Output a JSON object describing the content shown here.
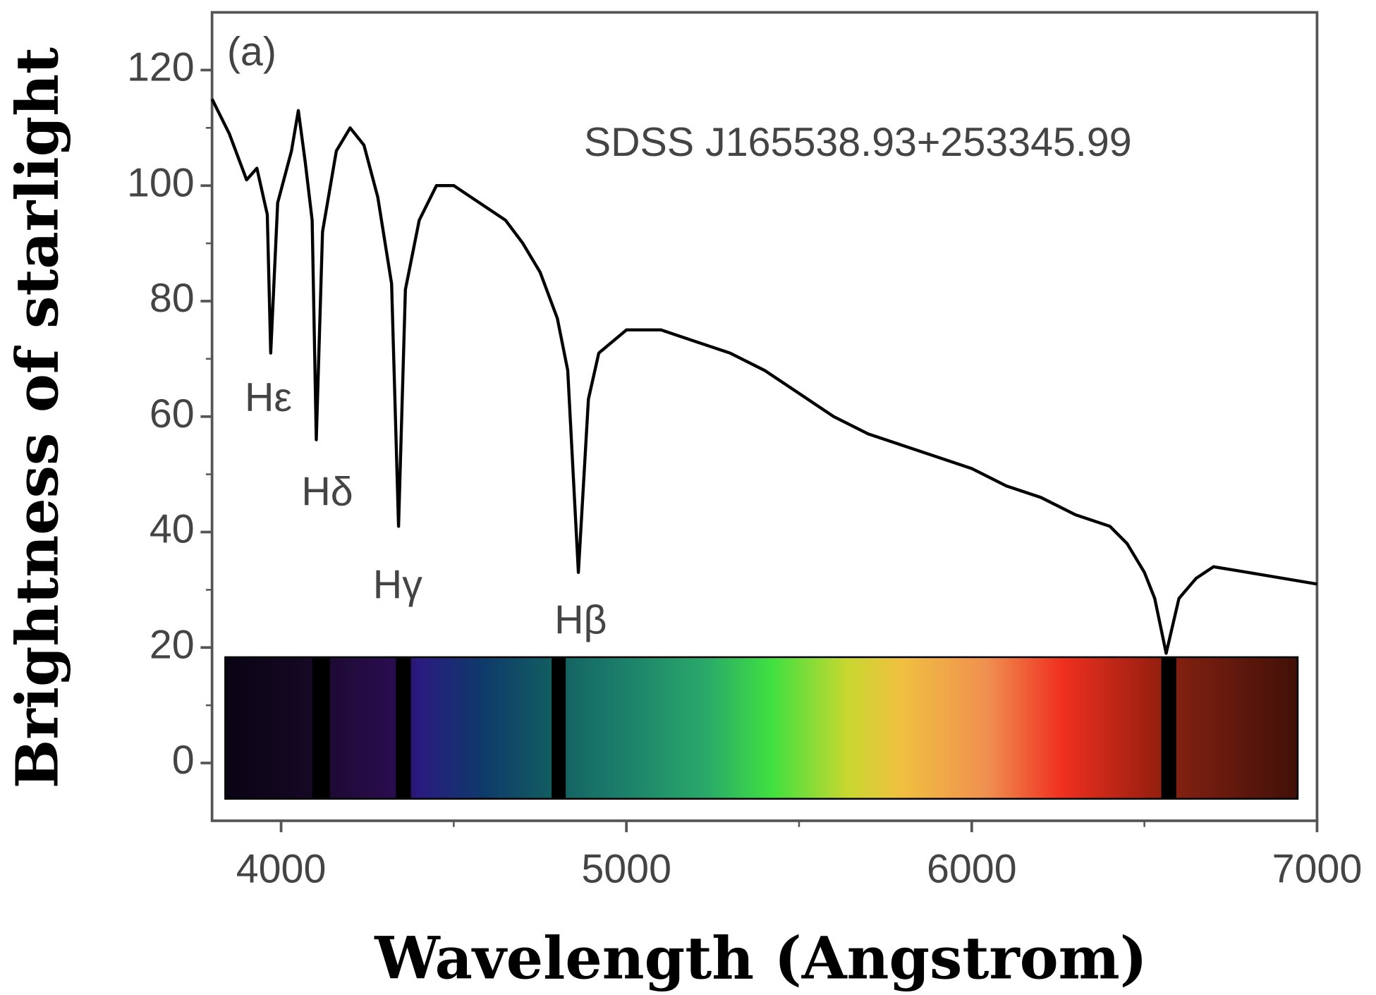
{
  "chart_data": {
    "type": "line",
    "xlabel": "Wavelength (Angstrom)",
    "ylabel": "Brightness of starlight",
    "annotations": [
      "(a)",
      "SDSS J165538.93+253345.99",
      "Hε",
      "Hδ",
      "Hγ",
      "Hβ"
    ],
    "xlim": [
      3800,
      7000
    ],
    "ylim": [
      -10,
      130
    ],
    "xticks": [
      4000,
      5000,
      6000,
      7000
    ],
    "yticks": [
      0,
      20,
      40,
      60,
      80,
      100,
      120
    ],
    "xminorticks": [
      4500,
      5500,
      6500
    ],
    "yminorticks": [
      10,
      30,
      50,
      70,
      90,
      110
    ],
    "color": "#000000",
    "x": [
      3800,
      3850,
      3900,
      3930,
      3960,
      3970,
      3990,
      4030,
      4050,
      4070,
      4090,
      4102,
      4120,
      4160,
      4200,
      4240,
      4280,
      4320,
      4340,
      4360,
      4400,
      4450,
      4500,
      4550,
      4600,
      4650,
      4700,
      4750,
      4800,
      4830,
      4861,
      4890,
      4920,
      4960,
      5000,
      5100,
      5200,
      5300,
      5400,
      5500,
      5600,
      5700,
      5800,
      5900,
      6000,
      6100,
      6200,
      6300,
      6400,
      6450,
      6500,
      6530,
      6563,
      6600,
      6650,
      6700,
      6800,
      6900,
      7000
    ],
    "values": [
      115,
      109,
      101,
      103,
      95,
      71,
      97,
      106,
      113,
      104,
      94,
      56,
      92,
      106,
      110,
      107,
      98,
      83,
      41,
      82,
      94,
      100,
      100,
      98,
      96,
      94,
      90,
      85,
      77,
      68,
      33,
      63,
      71,
      73,
      75,
      75,
      73,
      71,
      68,
      64,
      60,
      57,
      55,
      53,
      51,
      48,
      46,
      43,
      41,
      38,
      33,
      28.5,
      19,
      28.5,
      32,
      34,
      33,
      32,
      31
    ]
  }
}
